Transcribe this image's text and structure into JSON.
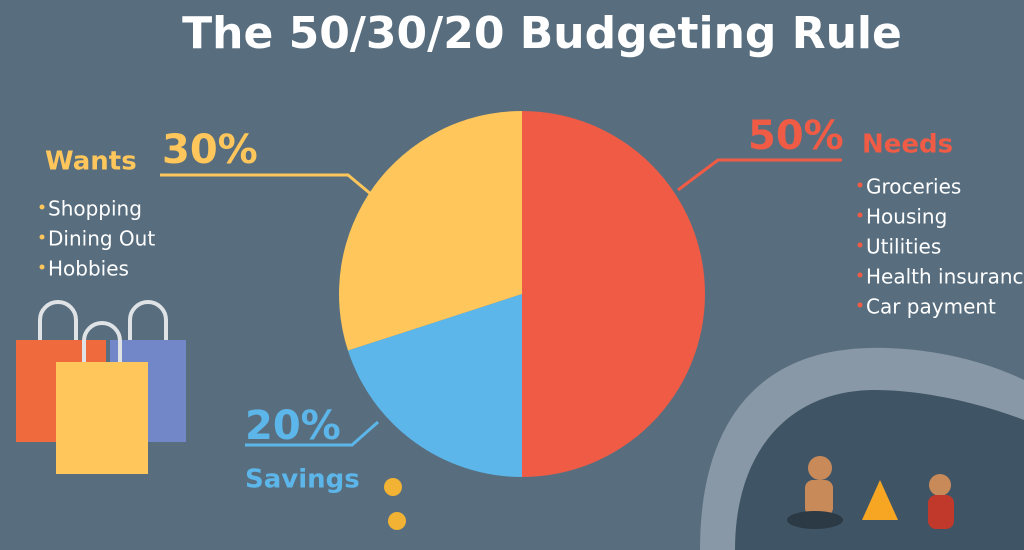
{
  "chart_data": {
    "type": "pie",
    "title": "The 50/30/20 Budgeting Rule",
    "categories": [
      "Needs",
      "Savings",
      "Wants"
    ],
    "values": [
      50,
      20,
      30
    ],
    "value_labels": [
      "50%",
      "20%",
      "30%"
    ],
    "colors": [
      "#f05b45",
      "#5cb6e9",
      "#fec65b"
    ],
    "category_items": [
      [
        "Groceries",
        "Housing",
        "Utilities",
        "Health insurance",
        "Car payment"
      ],
      [],
      [
        "Shopping",
        "Dining Out",
        "Hobbies"
      ]
    ]
  }
}
